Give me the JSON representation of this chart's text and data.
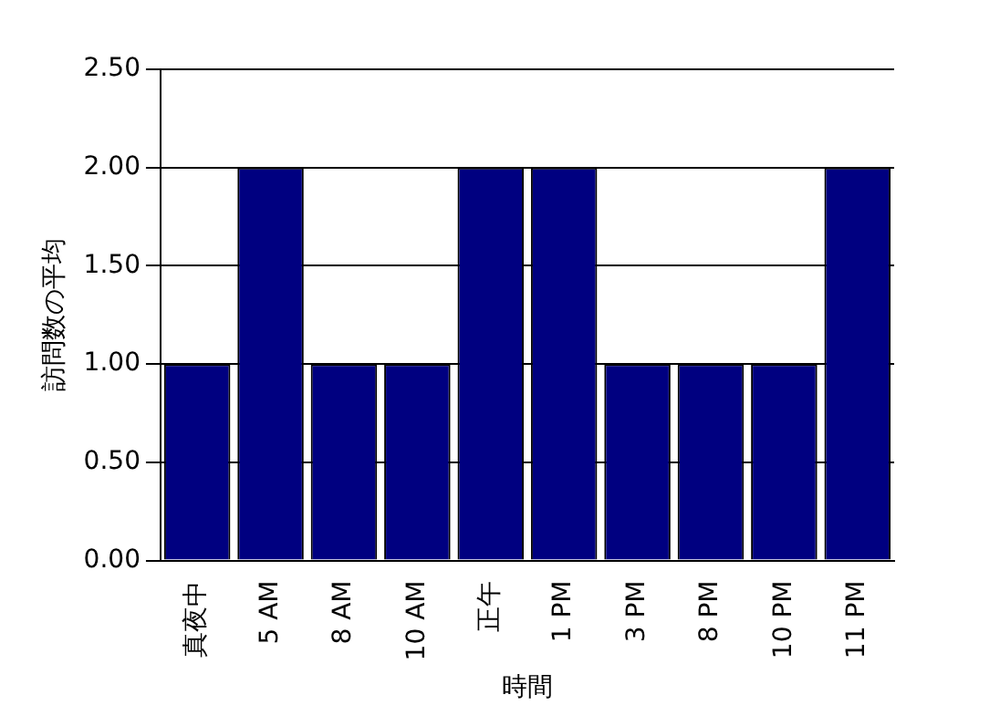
{
  "chart_data": {
    "type": "bar",
    "xlabel": "時間",
    "ylabel": "訪問数の平均",
    "categories": [
      "真夜中",
      "5 AM",
      "8 AM",
      "10 AM",
      "正午",
      "1 PM",
      "3 PM",
      "8 PM",
      "10 PM",
      "11 PM"
    ],
    "values": [
      1,
      2,
      1,
      1,
      2,
      2,
      1,
      1,
      1,
      2
    ],
    "color": "#000080",
    "ylim": [
      0,
      2.5
    ],
    "yticks": [
      {
        "value": 0,
        "label": "0.00"
      },
      {
        "value": 0.5,
        "label": "0.50"
      },
      {
        "value": 1,
        "label": "1.00"
      },
      {
        "value": 1.5,
        "label": "1.50"
      },
      {
        "value": 2,
        "label": "2.00"
      },
      {
        "value": 2.5,
        "label": "2.50"
      }
    ],
    "grid": "y",
    "legend": false
  }
}
